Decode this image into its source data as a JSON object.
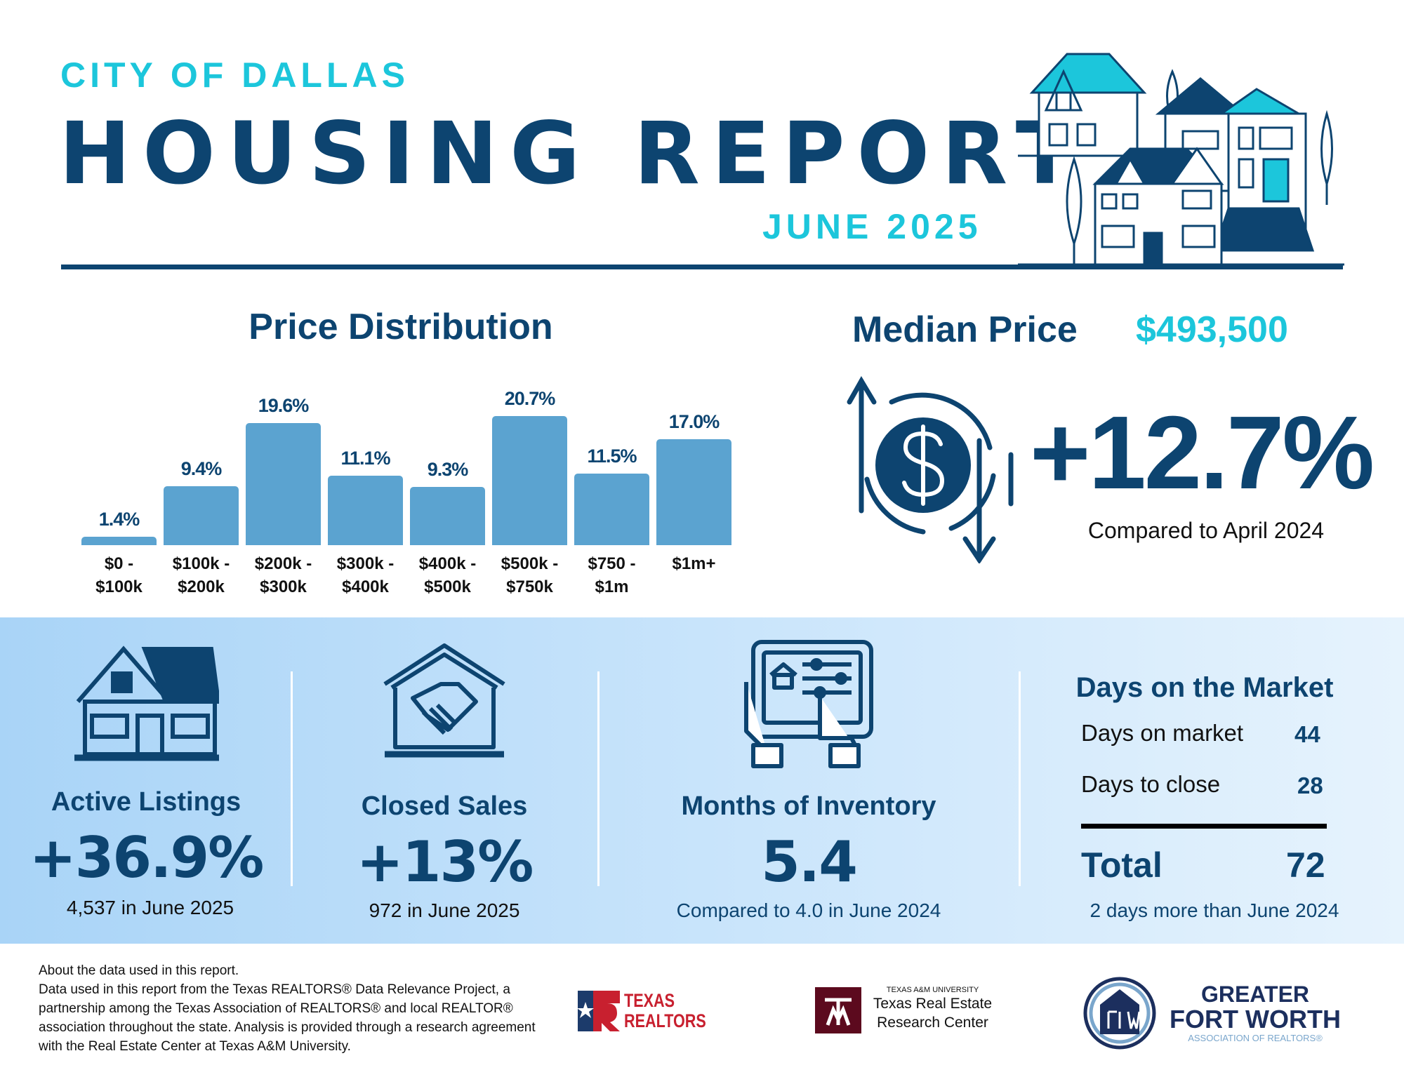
{
  "header": {
    "city": "CITY OF DALLAS",
    "title": "HOUSING REPORT",
    "month": "JUNE 2025"
  },
  "price_distribution": {
    "title": "Price Distribution"
  },
  "chart_data": {
    "type": "bar",
    "title": "Price Distribution",
    "categories": [
      [
        "$0 -",
        "$100k"
      ],
      [
        "$100k -",
        "$200k"
      ],
      [
        "$200k -",
        "$300k"
      ],
      [
        "$300k -",
        "$400k"
      ],
      [
        "$400k -",
        "$500k"
      ],
      [
        "$500k -",
        "$750k"
      ],
      [
        "$750 -",
        "$1m"
      ],
      [
        "$1m+",
        ""
      ]
    ],
    "values": [
      1.4,
      9.4,
      19.6,
      11.1,
      9.3,
      20.7,
      11.5,
      17.0
    ],
    "value_labels": [
      "1.4%",
      "9.4%",
      "19.6%",
      "11.1%",
      "9.3%",
      "20.7%",
      "11.5%",
      "17.0%"
    ],
    "xlabel": "",
    "ylabel": "",
    "ylim": [
      0,
      21
    ],
    "color": "#5ba3d0"
  },
  "median": {
    "label": "Median Price",
    "value": "$493,500",
    "change": "+12.7%",
    "compare": "Compared to April 2024"
  },
  "stats": [
    {
      "title": "Active Listings",
      "value": "+36.9%",
      "sub": "4,537 in June 2025",
      "icon": "house-icon"
    },
    {
      "title": "Closed Sales",
      "value": "+13%",
      "sub": "972 in June 2025",
      "icon": "handshake-house-icon"
    },
    {
      "title": "Months of Inventory",
      "value": "5.4",
      "sub": "Compared to 4.0 in June 2024",
      "icon": "tablet-hands-icon"
    }
  ],
  "days": {
    "title": "Days on the Market",
    "rows": [
      {
        "label": "Days on market",
        "value": "44"
      },
      {
        "label": "Days to close",
        "value": "28"
      }
    ],
    "total_label": "Total",
    "total_value": "72",
    "sub": "2 days more than June 2024"
  },
  "footer": {
    "about": "About the data used in this report.",
    "text": "Data used in this report from the Texas REALTORS® Data Relevance Project, a partnership among the Texas Association of REALTORS® and local REALTOR® association throughout the state. Analysis is provided through a research agreement with the Real Estate Center at Texas A&M University.",
    "logos": {
      "texas_realtors": [
        "TEXAS",
        "REALTORS"
      ],
      "tamu": {
        "univ": "TEXAS A&M UNIVERSITY",
        "name1": "Texas Real Estate",
        "name2": "Research Center"
      },
      "gfw": {
        "l1": "GREATER",
        "l2": "FORT WORTH",
        "l3": "ASSOCIATION OF REALTORS®"
      }
    }
  },
  "colors": {
    "navy": "#0d4470",
    "cyan": "#1cc6db",
    "bar": "#5ba3d0"
  }
}
